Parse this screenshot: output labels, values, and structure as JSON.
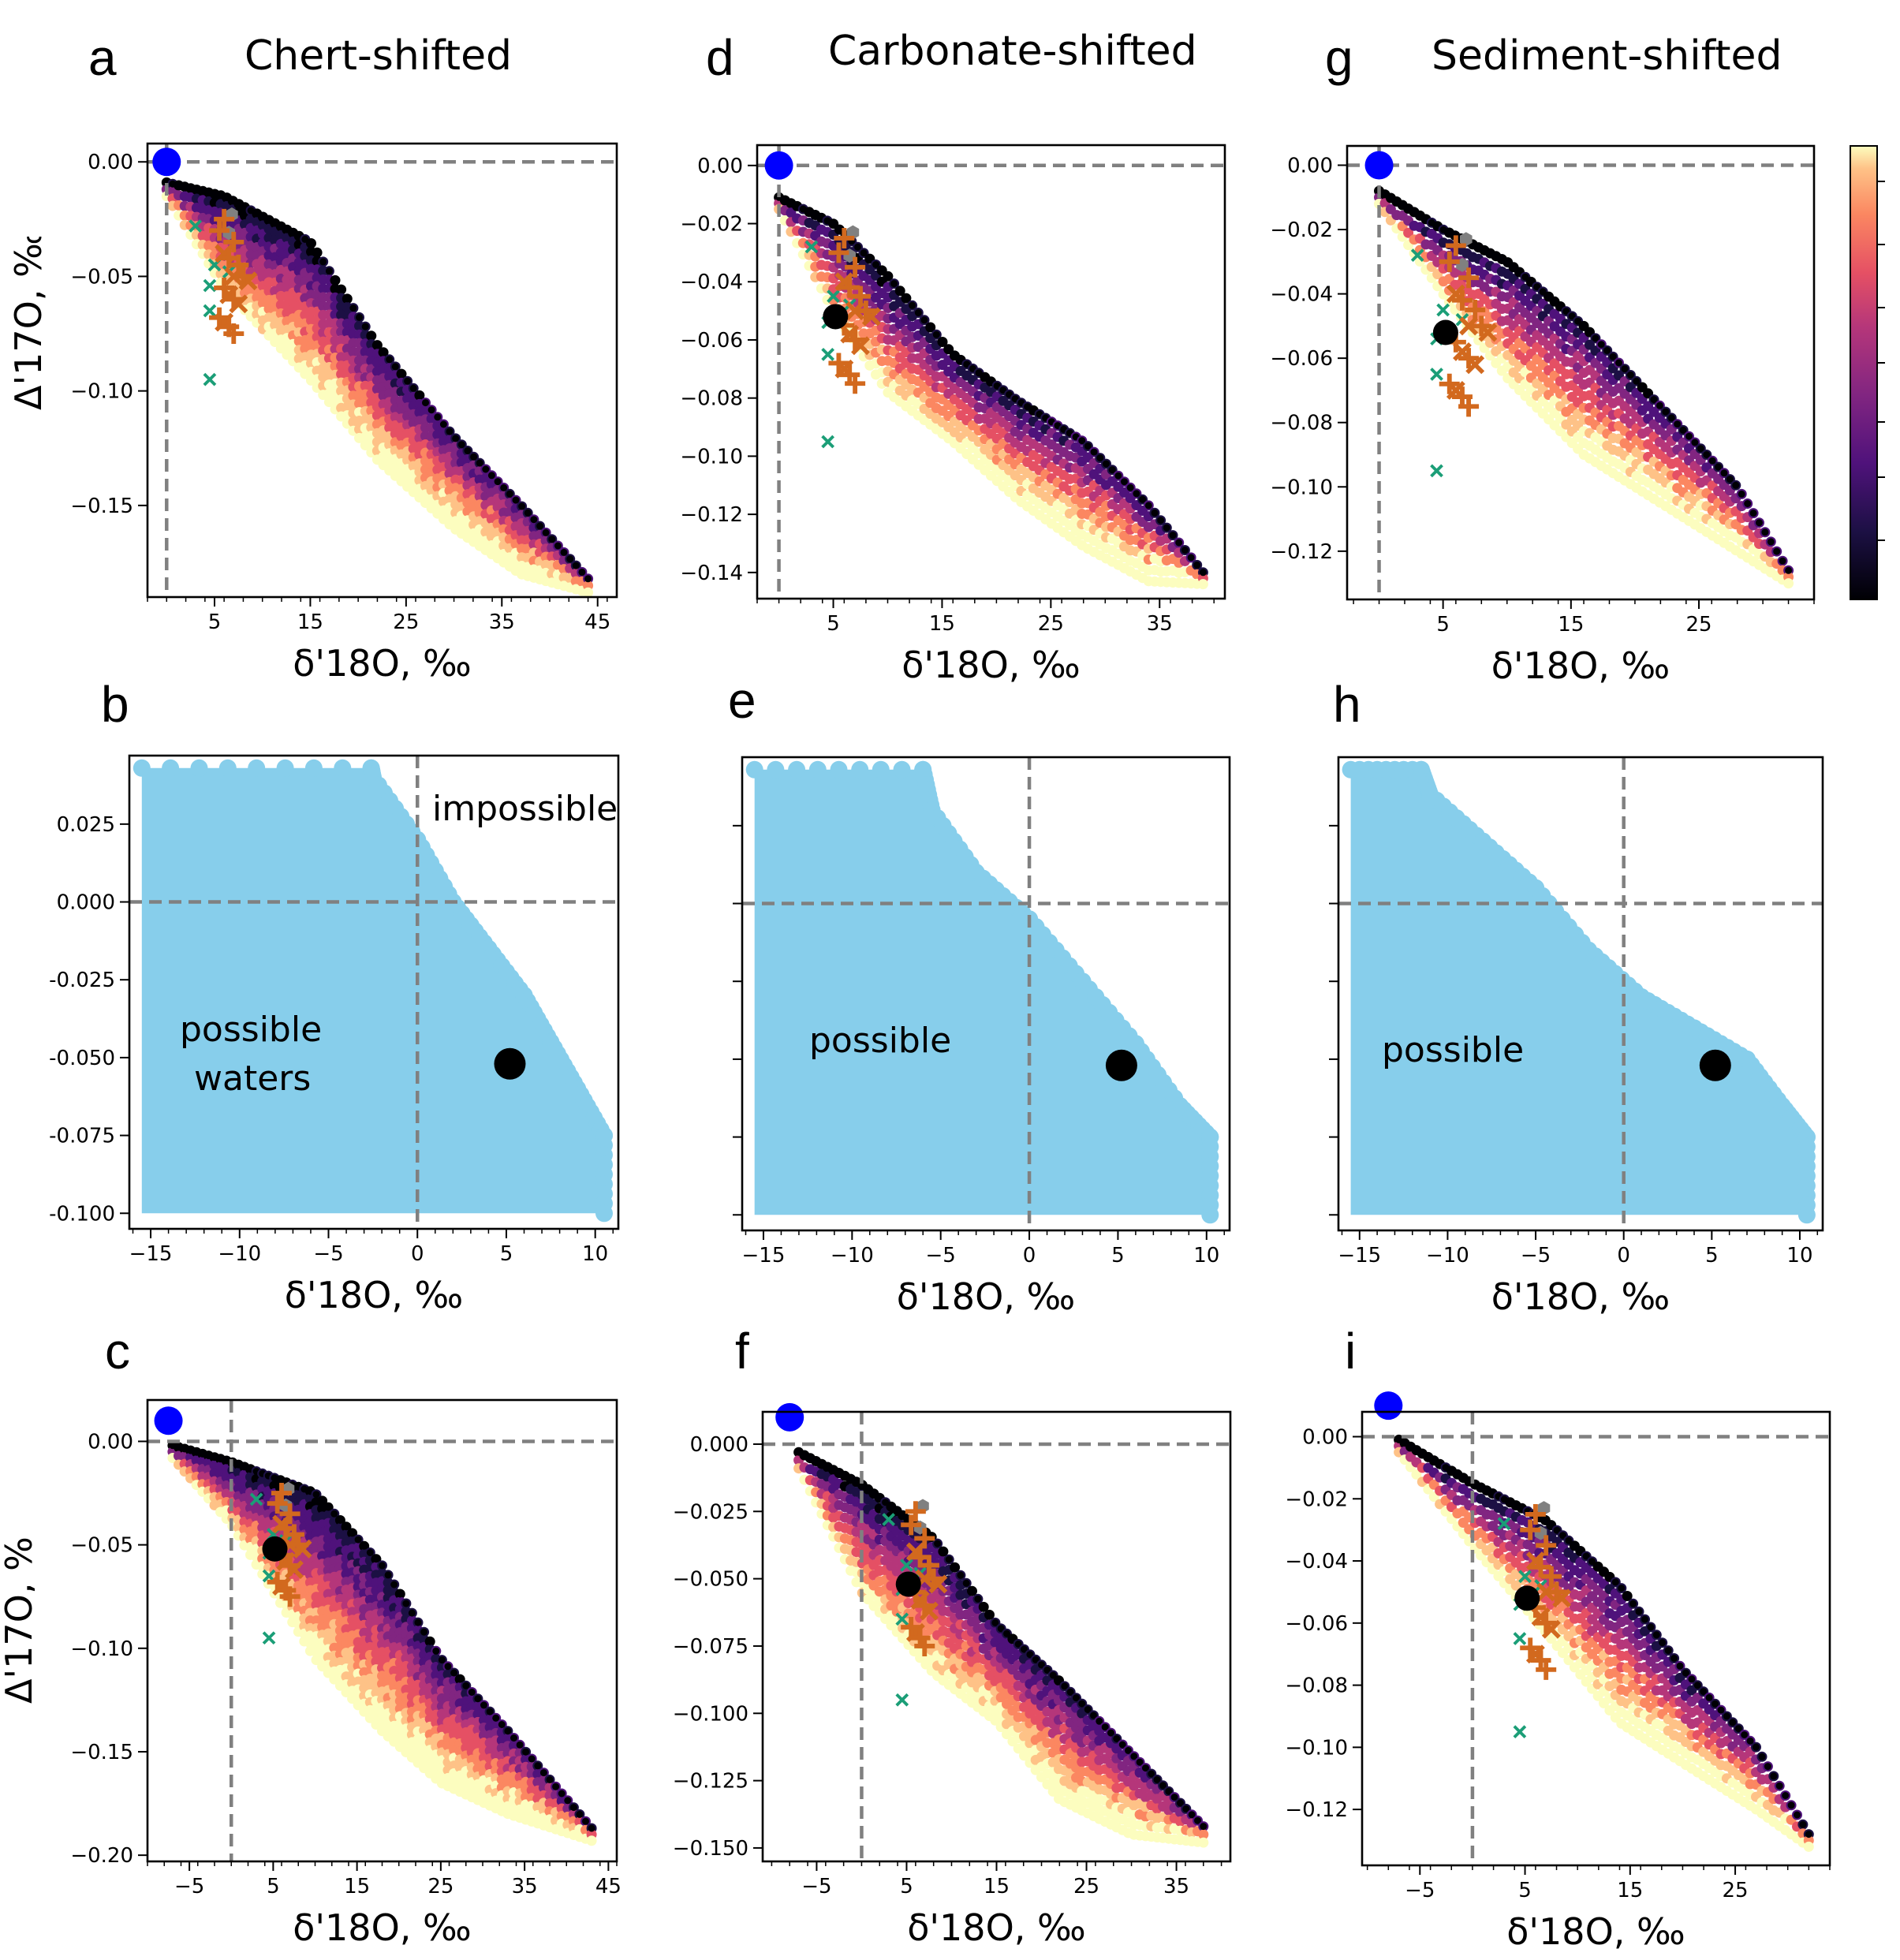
{
  "figure": {
    "columns": [
      {
        "letter": "a",
        "title": "Chert-shifted"
      },
      {
        "letter": "d",
        "title": "Carbonate-shifted"
      },
      {
        "letter": "g",
        "title": "Sediment-shifted"
      }
    ],
    "x_axis_label": "δ'18O, ‰",
    "ylabel_fragments": [
      "Δ'17O, ‰",
      "Δ'17O, ‰"
    ],
    "colorbar": {
      "colormap": "magma"
    },
    "colors": {
      "region_fill": "#87CEEB",
      "reference_point": "#0000FF",
      "highlight_point": "#000000",
      "plus_markers": "#D2691E",
      "x_markers_orange": "#D2691E",
      "x_markers_green": "#1B9E77",
      "hexagon_markers": "#808080",
      "reference_lines": "#808080"
    }
  },
  "chart_data": [
    {
      "id": "a",
      "type": "scatter",
      "letter": "a",
      "row": 0,
      "col": 0,
      "xlabel": "δ'18O, ‰",
      "ylabel": "Δ'17O, ‰",
      "xticks": [
        5,
        15,
        25,
        35,
        45
      ],
      "xticklabels": [
        "5",
        "15",
        "25",
        "35",
        "45"
      ],
      "yticks": [
        0.0,
        -0.05,
        -0.1,
        -0.15
      ],
      "yticklabels": [
        "0.00",
        "−0.05",
        "−0.10",
        "−0.15"
      ],
      "xlim": [
        -2,
        47
      ],
      "ylim": [
        -0.19,
        0.008
      ],
      "cloud_center": [
        [
          0,
          -0.012
        ],
        [
          6,
          -0.035
        ],
        [
          15,
          -0.065
        ],
        [
          22,
          -0.105
        ],
        [
          30,
          -0.14
        ],
        [
          37,
          -0.165
        ],
        [
          44,
          -0.185
        ]
      ],
      "cloud_halfwidth": [
        0.003,
        0.02,
        0.03,
        0.025,
        0.02,
        0.015,
        0.003
      ],
      "reference_lines": {
        "x": 0,
        "y": 0
      },
      "reference_point": [
        0,
        0
      ],
      "highlight_point": null
    },
    {
      "id": "b",
      "type": "scatter",
      "letter": "b",
      "row": 1,
      "col": 0,
      "xlabel": "δ'18O, ‰",
      "ylabel": "",
      "xticks": [
        -15,
        -10,
        -5,
        0,
        5,
        10
      ],
      "xticklabels": [
        "−15",
        "−10",
        "−5",
        "0",
        "5",
        "10"
      ],
      "yticks": [
        0.025,
        0.0,
        -0.025,
        -0.05,
        -0.075,
        -0.1
      ],
      "yticklabels": [
        "0.025",
        "0.000",
        "-0.025",
        "-0.050",
        "-0.075",
        "-0.100"
      ],
      "xlim": [
        -16.2,
        11.3
      ],
      "ylim": [
        -0.105,
        0.047
      ],
      "region_boundary": [
        [
          -15.5,
          0.043
        ],
        [
          -2.6,
          0.043
        ],
        [
          -2.5,
          0.04
        ],
        [
          0,
          0.02
        ],
        [
          2,
          0.0
        ],
        [
          4,
          -0.015
        ],
        [
          6,
          -0.03
        ],
        [
          7.5,
          -0.045
        ],
        [
          9,
          -0.06
        ],
        [
          10.5,
          -0.075
        ],
        [
          10.5,
          -0.1
        ],
        [
          -15.5,
          -0.1
        ]
      ],
      "region_labels": [
        "possible",
        "waters",
        "impossible"
      ],
      "reference_lines": {
        "x": 0,
        "y": 0
      },
      "highlight_point": [
        5.2,
        -0.052
      ]
    },
    {
      "id": "c",
      "type": "scatter",
      "letter": "c",
      "row": 2,
      "col": 0,
      "xlabel": "δ'18O, ‰",
      "ylabel": "Δ'17O, ‰",
      "xticks": [
        -5,
        5,
        15,
        25,
        35,
        45
      ],
      "xticklabels": [
        "−5",
        "5",
        "15",
        "25",
        "35",
        "45"
      ],
      "yticks": [
        0.0,
        -0.05,
        -0.1,
        -0.15,
        -0.2
      ],
      "yticklabels": [
        "0.00",
        "−0.05",
        "−0.10",
        "−0.15",
        "−0.20"
      ],
      "xlim": [
        -10,
        46
      ],
      "ylim": [
        -0.203,
        0.02
      ],
      "cloud_center": [
        [
          -7,
          -0.005
        ],
        [
          0,
          -0.025
        ],
        [
          10,
          -0.065
        ],
        [
          18,
          -0.1
        ],
        [
          25,
          -0.135
        ],
        [
          33,
          -0.16
        ],
        [
          43,
          -0.19
        ]
      ],
      "cloud_halfwidth": [
        0.003,
        0.015,
        0.04,
        0.04,
        0.03,
        0.02,
        0.003
      ],
      "reference_lines": {
        "x": 0,
        "y": 0
      },
      "reference_point": [
        -7.5,
        0.01
      ],
      "highlight_point": [
        5.2,
        -0.052
      ]
    },
    {
      "id": "d",
      "type": "scatter",
      "letter": "d",
      "row": 0,
      "col": 1,
      "xlabel": "δ'18O, ‰",
      "ylabel": "",
      "xticks": [
        5,
        15,
        25,
        35
      ],
      "xticklabels": [
        "5",
        "15",
        "25",
        "35"
      ],
      "yticks": [
        0.0,
        -0.02,
        -0.04,
        -0.06,
        -0.08,
        -0.1,
        -0.12,
        -0.14
      ],
      "yticklabels": [
        "0.00",
        "−0.02",
        "−0.04",
        "−0.06",
        "−0.08",
        "−0.10",
        "−0.12",
        "−0.14"
      ],
      "xlim": [
        -2,
        41
      ],
      "ylim": [
        -0.149,
        0.007
      ],
      "cloud_center": [
        [
          0,
          -0.013
        ],
        [
          5,
          -0.035
        ],
        [
          10,
          -0.058
        ],
        [
          16,
          -0.08
        ],
        [
          22,
          -0.098
        ],
        [
          28,
          -0.113
        ],
        [
          34,
          -0.13
        ],
        [
          39,
          -0.142
        ]
      ],
      "cloud_halfwidth": [
        0.002,
        0.015,
        0.02,
        0.015,
        0.017,
        0.018,
        0.013,
        0.002
      ],
      "reference_lines": {
        "x": 0,
        "y": 0
      },
      "reference_point": [
        0,
        0
      ],
      "highlight_point": [
        5.2,
        -0.052
      ]
    },
    {
      "id": "e",
      "type": "scatter",
      "letter": "e",
      "row": 1,
      "col": 1,
      "xlabel": "δ'18O, ‰",
      "ylabel": "",
      "xticks": [
        -15,
        -10,
        -5,
        0,
        5,
        10
      ],
      "xticklabels": [
        "−15",
        "−10",
        "−5",
        "0",
        "5",
        "10"
      ],
      "yticks": [
        0.025,
        0.0,
        -0.025,
        -0.05,
        -0.075,
        -0.1
      ],
      "yticklabels": [
        "",
        "",
        "",
        "",
        "",
        ""
      ],
      "xlim": [
        -16.2,
        11.3
      ],
      "ylim": [
        -0.105,
        0.047
      ],
      "region_boundary": [
        [
          -15.5,
          0.043
        ],
        [
          -6,
          0.043
        ],
        [
          -5.5,
          0.03
        ],
        [
          -3,
          0.01
        ],
        [
          0,
          -0.005
        ],
        [
          3,
          -0.025
        ],
        [
          6,
          -0.045
        ],
        [
          8.5,
          -0.065
        ],
        [
          10.2,
          -0.075
        ],
        [
          10.2,
          -0.1
        ],
        [
          -15.5,
          -0.1
        ]
      ],
      "region_labels": [
        "possible"
      ],
      "reference_lines": {
        "x": 0,
        "y": 0
      },
      "highlight_point": [
        5.2,
        -0.052
      ]
    },
    {
      "id": "f",
      "type": "scatter",
      "letter": "f",
      "row": 2,
      "col": 1,
      "xlabel": "δ'18O, ‰",
      "ylabel": "",
      "xticks": [
        -5,
        5,
        15,
        25,
        35
      ],
      "xticklabels": [
        "−5",
        "5",
        "15",
        "25",
        "35"
      ],
      "yticks": [
        0.0,
        -0.025,
        -0.05,
        -0.075,
        -0.1,
        -0.125,
        -0.15
      ],
      "yticklabels": [
        "0.000",
        "−0.025",
        "−0.050",
        "−0.075",
        "−0.100",
        "−0.125",
        "−0.150"
      ],
      "xlim": [
        -11,
        41
      ],
      "ylim": [
        -0.155,
        0.012
      ],
      "cloud_center": [
        [
          -7,
          -0.006
        ],
        [
          0,
          -0.035
        ],
        [
          8,
          -0.06
        ],
        [
          15,
          -0.085
        ],
        [
          22,
          -0.11
        ],
        [
          30,
          -0.13
        ],
        [
          38,
          -0.145
        ]
      ],
      "cloud_halfwidth": [
        0.003,
        0.02,
        0.025,
        0.018,
        0.022,
        0.015,
        0.003
      ],
      "reference_lines": {
        "x": 0,
        "y": 0
      },
      "reference_point": [
        -8,
        0.01
      ],
      "highlight_point": [
        5.2,
        -0.052
      ]
    },
    {
      "id": "g",
      "type": "scatter",
      "letter": "g",
      "row": 0,
      "col": 2,
      "xlabel": "δ'18O, ‰",
      "ylabel": "",
      "xticks": [
        5,
        15,
        25
      ],
      "xticklabels": [
        "5",
        "15",
        "25"
      ],
      "yticks": [
        0.0,
        -0.02,
        -0.04,
        -0.06,
        -0.08,
        -0.1,
        -0.12
      ],
      "yticklabels": [
        "0.00",
        "−0.02",
        "−0.04",
        "−0.06",
        "−0.08",
        "−0.10",
        "−0.12"
      ],
      "xlim": [
        -2.5,
        34
      ],
      "ylim": [
        -0.135,
        0.006
      ],
      "cloud_center": [
        [
          0,
          -0.01
        ],
        [
          5,
          -0.03
        ],
        [
          10,
          -0.048
        ],
        [
          16,
          -0.07
        ],
        [
          22,
          -0.09
        ],
        [
          28,
          -0.11
        ],
        [
          32,
          -0.128
        ]
      ],
      "cloud_halfwidth": [
        0.002,
        0.01,
        0.018,
        0.02,
        0.015,
        0.01,
        0.002
      ],
      "reference_lines": {
        "x": 0,
        "y": 0
      },
      "reference_point": [
        0,
        0
      ],
      "highlight_point": [
        5.2,
        -0.052
      ]
    },
    {
      "id": "h",
      "type": "scatter",
      "letter": "h",
      "row": 1,
      "col": 2,
      "xlabel": "δ'18O, ‰",
      "ylabel": "",
      "xticks": [
        -15,
        -10,
        -5,
        0,
        5,
        10
      ],
      "xticklabels": [
        "−15",
        "−10",
        "−5",
        "0",
        "5",
        "10"
      ],
      "yticks": [
        0.025,
        0.0,
        -0.025,
        -0.05,
        -0.075,
        -0.1
      ],
      "yticklabels": [
        "",
        "",
        "",
        "",
        "",
        ""
      ],
      "xlim": [
        -16.2,
        11.3
      ],
      "ylim": [
        -0.105,
        0.047
      ],
      "region_boundary": [
        [
          -15.5,
          0.043
        ],
        [
          -11.5,
          0.043
        ],
        [
          -11,
          0.035
        ],
        [
          -8,
          0.02
        ],
        [
          -5,
          0.005
        ],
        [
          -2,
          -0.015
        ],
        [
          1,
          -0.03
        ],
        [
          4,
          -0.04
        ],
        [
          7,
          -0.05
        ],
        [
          9,
          -0.065
        ],
        [
          10.4,
          -0.075
        ],
        [
          10.4,
          -0.1
        ],
        [
          -15.5,
          -0.1
        ]
      ],
      "region_labels": [
        "possible"
      ],
      "reference_lines": {
        "x": 0,
        "y": 0
      },
      "highlight_point": [
        5.2,
        -0.052
      ]
    },
    {
      "id": "i",
      "type": "scatter",
      "letter": "i",
      "row": 2,
      "col": 2,
      "xlabel": "δ'18O, ‰",
      "ylabel": "",
      "xticks": [
        -5,
        5,
        15,
        25
      ],
      "xticklabels": [
        "−5",
        "5",
        "15",
        "25"
      ],
      "yticks": [
        0.0,
        -0.02,
        -0.04,
        -0.06,
        -0.08,
        -0.1,
        -0.12
      ],
      "yticklabels": [
        "0.00",
        "−0.02",
        "−0.04",
        "−0.06",
        "−0.08",
        "−0.10",
        "−0.12"
      ],
      "xlim": [
        -10.5,
        34
      ],
      "ylim": [
        -0.138,
        0.008
      ],
      "cloud_center": [
        [
          -7,
          -0.003
        ],
        [
          0,
          -0.025
        ],
        [
          7,
          -0.045
        ],
        [
          14,
          -0.07
        ],
        [
          20,
          -0.09
        ],
        [
          27,
          -0.11
        ],
        [
          32,
          -0.13
        ]
      ],
      "cloud_halfwidth": [
        0.002,
        0.01,
        0.018,
        0.022,
        0.015,
        0.01,
        0.002
      ],
      "reference_lines": {
        "x": 0,
        "y": 0
      },
      "reference_point": [
        -8,
        0.01
      ],
      "highlight_point": [
        5.2,
        -0.052
      ]
    }
  ],
  "samples": {
    "plus_orange": [
      [
        6,
        -0.025
      ],
      [
        5.5,
        -0.03
      ],
      [
        7,
        -0.035
      ],
      [
        6.5,
        -0.042
      ],
      [
        7.5,
        -0.045
      ],
      [
        8,
        -0.05
      ],
      [
        6,
        -0.055
      ],
      [
        7,
        -0.06
      ],
      [
        5.5,
        -0.068
      ],
      [
        6.5,
        -0.072
      ],
      [
        7,
        -0.075
      ]
    ],
    "x_orange": [
      [
        6,
        -0.04
      ],
      [
        7,
        -0.05
      ],
      [
        8.5,
        -0.052
      ],
      [
        6.5,
        -0.058
      ],
      [
        7.5,
        -0.062
      ],
      [
        6,
        -0.07
      ]
    ],
    "x_green": [
      [
        3,
        -0.028
      ],
      [
        5,
        -0.045
      ],
      [
        6.5,
        -0.048
      ],
      [
        4.5,
        -0.054
      ],
      [
        4.5,
        -0.065
      ],
      [
        4.5,
        -0.095
      ]
    ],
    "hexagon_gray": [
      [
        6.8,
        -0.023
      ],
      [
        6.5,
        -0.031
      ]
    ]
  }
}
